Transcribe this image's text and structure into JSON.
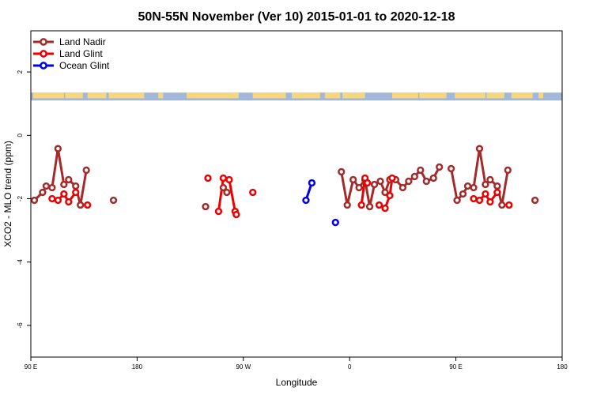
{
  "chart_data": {
    "type": "line",
    "title": "50N-55N November (Ver 10)   2015-01-01 to 2020-12-18",
    "xlabel": "Longitude",
    "ylabel": "XCO2 - MLO trend (ppm)",
    "xlim": [
      0,
      450
    ],
    "ylim": [
      -7,
      3.3
    ],
    "x_ticks": [
      {
        "value": 0,
        "label": "90 E"
      },
      {
        "value": 90,
        "label": "180"
      },
      {
        "value": 180,
        "label": "90 W"
      },
      {
        "value": 270,
        "label": "0"
      },
      {
        "value": 360,
        "label": "90 E"
      },
      {
        "value": 450,
        "label": "180"
      }
    ],
    "y_ticks": [
      {
        "value": 2,
        "label": "2"
      },
      {
        "value": 0,
        "label": "0"
      },
      {
        "value": -2,
        "label": "-2"
      },
      {
        "value": -4,
        "label": "-4"
      },
      {
        "value": -6,
        "label": "-6"
      }
    ],
    "legend": {
      "position": "top-left"
    },
    "land_strip": {
      "y_range": [
        1.1,
        1.35
      ],
      "ocean_color": "#a3b8d8",
      "land_color": "#f7d77d"
    },
    "series": [
      {
        "name": "Land Nadir",
        "color": "#a52a2a",
        "segments": [
          [
            [
              3,
              -2.05
            ],
            [
              10,
              -1.8
            ],
            [
              13,
              -1.6
            ],
            [
              18,
              -1.65
            ],
            [
              23,
              -0.42
            ],
            [
              28,
              -1.55
            ],
            [
              32,
              -1.4
            ],
            [
              38,
              -1.6
            ],
            [
              42,
              -2.2
            ],
            [
              47,
              -1.1
            ]
          ],
          [
            [
              70,
              -2.05
            ]
          ],
          [
            [
              148,
              -2.25
            ]
          ],
          [
            [
              163,
              -1.65
            ],
            [
              166,
              -1.8
            ]
          ],
          [
            [
              263,
              -1.15
            ],
            [
              268,
              -2.2
            ],
            [
              273,
              -1.4
            ],
            [
              278,
              -1.65
            ],
            [
              283,
              -1.4
            ],
            [
              287,
              -2.25
            ],
            [
              291,
              -1.55
            ],
            [
              296,
              -1.45
            ],
            [
              300,
              -1.8
            ],
            [
              304,
              -1.4
            ],
            [
              309,
              -1.4
            ],
            [
              315,
              -1.65
            ],
            [
              320,
              -1.45
            ],
            [
              325,
              -1.3
            ],
            [
              330,
              -1.1
            ],
            [
              335,
              -1.45
            ],
            [
              341,
              -1.35
            ],
            [
              346,
              -1.0
            ]
          ],
          [
            [
              356,
              -1.05
            ],
            [
              361,
              -2.05
            ],
            [
              366,
              -1.85
            ],
            [
              370,
              -1.6
            ],
            [
              375,
              -1.65
            ],
            [
              380,
              -0.42
            ],
            [
              385,
              -1.55
            ],
            [
              389,
              -1.4
            ],
            [
              395,
              -1.6
            ],
            [
              399,
              -2.2
            ],
            [
              404,
              -1.1
            ]
          ],
          [
            [
              427,
              -2.05
            ]
          ]
        ]
      },
      {
        "name": "Land Glint",
        "color": "#ee0000",
        "segments": [
          [
            [
              18,
              -2.0
            ],
            [
              23,
              -2.05
            ],
            [
              28,
              -1.85
            ],
            [
              32,
              -2.1
            ],
            [
              38,
              -1.8
            ]
          ],
          [
            [
              48,
              -2.2
            ]
          ],
          [
            [
              150,
              -1.35
            ]
          ],
          [
            [
              159,
              -2.4
            ],
            [
              163,
              -1.35
            ],
            [
              168,
              -1.4
            ],
            [
              173,
              -2.4
            ],
            [
              174,
              -2.5
            ]
          ],
          [
            [
              188,
              -1.8
            ]
          ],
          [
            [
              280,
              -2.2
            ],
            [
              283,
              -1.35
            ],
            [
              285,
              -1.5
            ]
          ],
          [
            [
              295,
              -2.2
            ],
            [
              300,
              -2.3
            ],
            [
              304,
              -1.9
            ],
            [
              306,
              -1.35
            ]
          ],
          [
            [
              375,
              -2.0
            ],
            [
              380,
              -2.05
            ],
            [
              385,
              -1.85
            ],
            [
              389,
              -2.1
            ],
            [
              395,
              -1.8
            ]
          ],
          [
            [
              405,
              -2.2
            ]
          ]
        ]
      },
      {
        "name": "Ocean Glint",
        "color": "#0000ee",
        "segments": [
          [
            [
              233,
              -2.05
            ],
            [
              238,
              -1.5
            ]
          ],
          [
            [
              258,
              -2.75
            ]
          ]
        ]
      }
    ]
  }
}
